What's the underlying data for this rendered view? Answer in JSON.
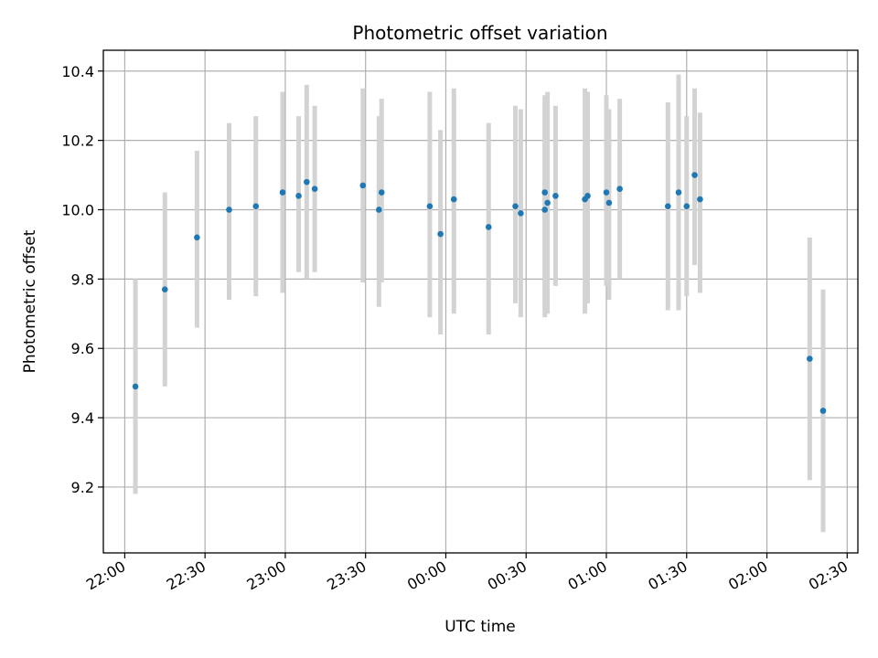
{
  "chart_data": {
    "type": "scatter",
    "title": "Photometric offset variation",
    "xlabel": "UTC time",
    "ylabel": "Photometric offset",
    "x_tick_labels": [
      "22:00",
      "22:30",
      "23:00",
      "23:30",
      "00:00",
      "00:30",
      "01:00",
      "01:30",
      "02:00",
      "02:30"
    ],
    "y_ticks": [
      "9.2",
      "9.4",
      "9.6",
      "9.8",
      "10.0",
      "10.2",
      "10.4"
    ],
    "xlim": [
      "21:52",
      "02:34"
    ],
    "ylim": [
      9.01,
      10.46
    ],
    "grid": true,
    "colors": {
      "point": "#1f77b4",
      "errorbar": "#d3d3d3",
      "grid": "#b0b0b0"
    },
    "series": [
      {
        "points": [
          {
            "x": "22:04",
            "y": 9.49,
            "yerr_low": 9.18,
            "yerr_high": 9.8
          },
          {
            "x": "22:15",
            "y": 9.77,
            "yerr_low": 9.49,
            "yerr_high": 10.05
          },
          {
            "x": "22:27",
            "y": 9.92,
            "yerr_low": 9.66,
            "yerr_high": 10.17
          },
          {
            "x": "22:39",
            "y": 10.0,
            "yerr_low": 9.74,
            "yerr_high": 10.25
          },
          {
            "x": "22:49",
            "y": 10.01,
            "yerr_low": 9.75,
            "yerr_high": 10.27
          },
          {
            "x": "22:59",
            "y": 10.05,
            "yerr_low": 9.76,
            "yerr_high": 10.34
          },
          {
            "x": "23:05",
            "y": 10.04,
            "yerr_low": 9.82,
            "yerr_high": 10.27
          },
          {
            "x": "23:08",
            "y": 10.08,
            "yerr_low": 9.8,
            "yerr_high": 10.36
          },
          {
            "x": "23:11",
            "y": 10.06,
            "yerr_low": 9.82,
            "yerr_high": 10.3
          },
          {
            "x": "23:29",
            "y": 10.07,
            "yerr_low": 9.79,
            "yerr_high": 10.35
          },
          {
            "x": "23:35",
            "y": 10.0,
            "yerr_low": 9.72,
            "yerr_high": 10.27
          },
          {
            "x": "23:36",
            "y": 10.05,
            "yerr_low": 9.79,
            "yerr_high": 10.32
          },
          {
            "x": "23:54",
            "y": 10.01,
            "yerr_low": 9.69,
            "yerr_high": 10.34
          },
          {
            "x": "23:58",
            "y": 9.93,
            "yerr_low": 9.64,
            "yerr_high": 10.23
          },
          {
            "x": "00:03",
            "y": 10.03,
            "yerr_low": 9.7,
            "yerr_high": 10.35
          },
          {
            "x": "00:16",
            "y": 9.95,
            "yerr_low": 9.64,
            "yerr_high": 10.25
          },
          {
            "x": "00:26",
            "y": 10.01,
            "yerr_low": 9.73,
            "yerr_high": 10.3
          },
          {
            "x": "00:28",
            "y": 9.99,
            "yerr_low": 9.69,
            "yerr_high": 10.29
          },
          {
            "x": "00:37",
            "y": 10.05,
            "yerr_low": 9.69,
            "yerr_high": 10.31
          },
          {
            "x": "00:37",
            "y": 10.0,
            "yerr_low": 9.71,
            "yerr_high": 10.33
          },
          {
            "x": "00:38",
            "y": 10.02,
            "yerr_low": 9.7,
            "yerr_high": 10.34
          },
          {
            "x": "00:41",
            "y": 10.04,
            "yerr_low": 9.78,
            "yerr_high": 10.3
          },
          {
            "x": "00:52",
            "y": 10.03,
            "yerr_low": 9.7,
            "yerr_high": 10.35
          },
          {
            "x": "00:53",
            "y": 10.04,
            "yerr_low": 9.73,
            "yerr_high": 10.34
          },
          {
            "x": "01:00",
            "y": 10.05,
            "yerr_low": 9.78,
            "yerr_high": 10.33
          },
          {
            "x": "01:01",
            "y": 10.02,
            "yerr_low": 9.74,
            "yerr_high": 10.29
          },
          {
            "x": "01:05",
            "y": 10.06,
            "yerr_low": 9.8,
            "yerr_high": 10.32
          },
          {
            "x": "01:23",
            "y": 10.01,
            "yerr_low": 9.71,
            "yerr_high": 10.31
          },
          {
            "x": "01:27",
            "y": 10.05,
            "yerr_low": 9.71,
            "yerr_high": 10.39
          },
          {
            "x": "01:30",
            "y": 10.01,
            "yerr_low": 9.75,
            "yerr_high": 10.27
          },
          {
            "x": "01:33",
            "y": 10.1,
            "yerr_low": 9.84,
            "yerr_high": 10.35
          },
          {
            "x": "01:35",
            "y": 10.03,
            "yerr_low": 9.76,
            "yerr_high": 10.28
          },
          {
            "x": "02:16",
            "y": 9.57,
            "yerr_low": 9.22,
            "yerr_high": 9.92
          },
          {
            "x": "02:21",
            "y": 9.42,
            "yerr_low": 9.07,
            "yerr_high": 9.77
          }
        ]
      }
    ]
  }
}
